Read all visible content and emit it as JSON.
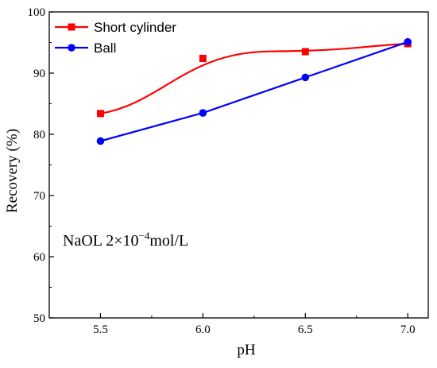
{
  "chart_data": {
    "type": "line",
    "xlabel": "pH",
    "ylabel": "Recovery (%)",
    "xlim": [
      5.25,
      7.1
    ],
    "ylim": [
      50,
      100
    ],
    "x_ticks": [
      "5.5",
      "6.0",
      "6.5",
      "7.0"
    ],
    "y_ticks": [
      "50",
      "60",
      "70",
      "80",
      "90",
      "100"
    ],
    "legend_position": "top-left",
    "annotation": {
      "prefix": "NaOL 2×10",
      "superscript": "−4",
      "suffix": "mol/L"
    },
    "series": [
      {
        "name": "Short cylinder",
        "color": "#ff0000",
        "marker": "square",
        "line": "smooth-fit",
        "x": [
          5.5,
          6.0,
          6.5,
          7.0
        ],
        "y": [
          83.4,
          92.4,
          93.5,
          94.8
        ]
      },
      {
        "name": "Ball",
        "color": "#0000ff",
        "marker": "circle",
        "line": "straight",
        "x": [
          5.5,
          6.0,
          6.5,
          7.0
        ],
        "y": [
          78.9,
          83.5,
          89.3,
          95.1
        ]
      }
    ]
  }
}
